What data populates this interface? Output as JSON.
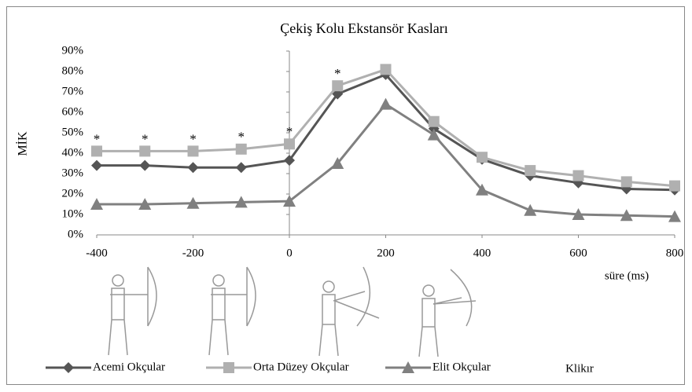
{
  "chart_data": {
    "type": "line",
    "title": "Çekiş Kolu Ekstansör Kasları",
    "y_label": "MİK",
    "x_label": "süre (ms)",
    "extra_label": "Klikır",
    "x": [
      -400,
      -300,
      -200,
      -100,
      0,
      100,
      200,
      300,
      400,
      500,
      600,
      700,
      800
    ],
    "series": [
      {
        "name": "Acemi Okçular",
        "color": "#555555",
        "marker": "diamond",
        "values": [
          34,
          34,
          33,
          33,
          36.5,
          69,
          78.5,
          52,
          37,
          29,
          25.5,
          22.5,
          22
        ]
      },
      {
        "name": "Orta Düzey Okçular",
        "color": "#b0b0b0",
        "marker": "square",
        "values": [
          41,
          41,
          41,
          42,
          44.5,
          73,
          81,
          55.5,
          38,
          31.5,
          29,
          26,
          24
        ]
      },
      {
        "name": "Elit Okçular",
        "color": "#808080",
        "marker": "triangle",
        "values": [
          15,
          15,
          15.5,
          16,
          16.5,
          35,
          64,
          49,
          22,
          12,
          10,
          9.5,
          9
        ]
      }
    ],
    "annotations": [
      {
        "x": -400,
        "text": "*"
      },
      {
        "x": -300,
        "text": "*"
      },
      {
        "x": -200,
        "text": "*"
      },
      {
        "x": -100,
        "text": "*"
      },
      {
        "x": 0,
        "text": "*"
      },
      {
        "x": 100,
        "text": "*"
      }
    ],
    "xlim": [
      -400,
      800
    ],
    "xticks": [
      -400,
      -200,
      0,
      200,
      400,
      600,
      800
    ],
    "ylim": [
      0,
      90
    ],
    "yticks": [
      {
        "value": 0,
        "label": "0%"
      },
      {
        "value": 10,
        "label": "10%"
      },
      {
        "value": 20,
        "label": "20%"
      },
      {
        "value": 30,
        "label": "30%"
      },
      {
        "value": 40,
        "label": "40%"
      },
      {
        "value": 50,
        "label": "50%"
      },
      {
        "value": 60,
        "label": "60%"
      },
      {
        "value": 70,
        "label": "70%"
      },
      {
        "value": 80,
        "label": "80%"
      },
      {
        "value": 90,
        "label": "90%"
      }
    ],
    "grid": false,
    "legend": "bottom"
  }
}
